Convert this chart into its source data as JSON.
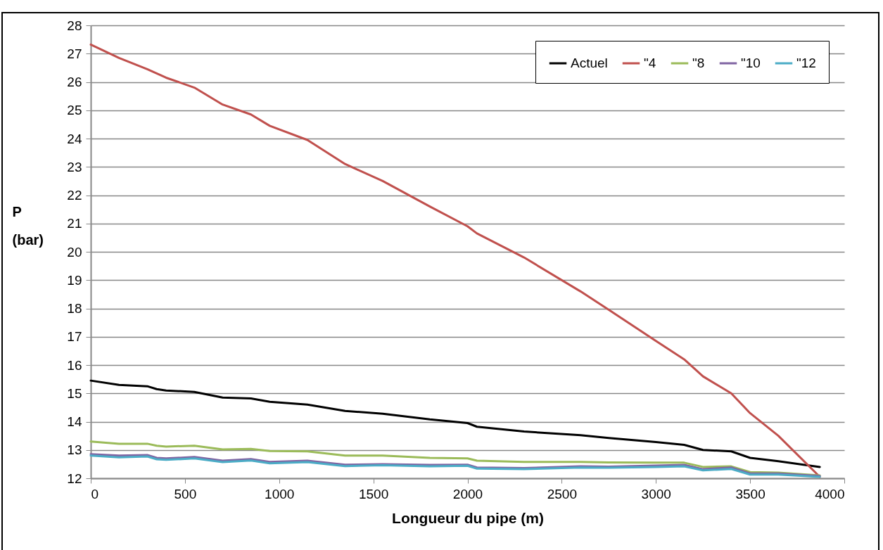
{
  "chart_data": {
    "type": "line",
    "xlabel": "Longueur du pipe (m)",
    "ylabel": "P (bar)",
    "x": [
      0,
      150,
      300,
      350,
      400,
      550,
      700,
      850,
      950,
      1150,
      1350,
      1550,
      1800,
      2000,
      2050,
      2300,
      2600,
      2750,
      3000,
      3150,
      3250,
      3400,
      3500,
      3650,
      3870
    ],
    "series": [
      {
        "name": "Actuel",
        "color": "#000000",
        "values": [
          15.45,
          15.3,
          15.25,
          15.15,
          15.1,
          15.05,
          14.85,
          14.82,
          14.7,
          14.6,
          14.38,
          14.28,
          14.08,
          13.95,
          13.82,
          13.65,
          13.52,
          13.42,
          13.28,
          13.18,
          13.0,
          12.95,
          12.72,
          12.6,
          12.4
        ]
      },
      {
        "name": "\"4",
        "color": "#c0504d",
        "values": [
          27.32,
          26.85,
          26.45,
          26.3,
          26.15,
          25.8,
          25.2,
          24.85,
          24.45,
          23.95,
          23.1,
          22.5,
          21.6,
          20.9,
          20.65,
          19.8,
          18.6,
          17.95,
          16.85,
          16.2,
          15.6,
          15.0,
          14.3,
          13.5,
          12.05
        ]
      },
      {
        "name": "\"8",
        "color": "#9bbb59",
        "values": [
          13.3,
          13.22,
          13.22,
          13.15,
          13.12,
          13.15,
          13.02,
          13.04,
          12.96,
          12.95,
          12.8,
          12.8,
          12.72,
          12.7,
          12.62,
          12.58,
          12.58,
          12.56,
          12.55,
          12.55,
          12.4,
          12.42,
          12.22,
          12.2,
          12.1
        ]
      },
      {
        "name": "\"10",
        "color": "#8064a2",
        "values": [
          12.85,
          12.8,
          12.82,
          12.72,
          12.7,
          12.75,
          12.62,
          12.68,
          12.58,
          12.62,
          12.48,
          12.5,
          12.47,
          12.48,
          12.38,
          12.36,
          12.42,
          12.41,
          12.45,
          12.47,
          12.32,
          12.38,
          12.17,
          12.17,
          12.08
        ]
      },
      {
        "name": "\"12",
        "color": "#4bacc6",
        "values": [
          12.8,
          12.74,
          12.77,
          12.67,
          12.65,
          12.7,
          12.57,
          12.63,
          12.53,
          12.57,
          12.43,
          12.46,
          12.42,
          12.44,
          12.34,
          12.32,
          12.38,
          12.37,
          12.4,
          12.42,
          12.28,
          12.33,
          12.13,
          12.13,
          12.05
        ]
      }
    ],
    "xlim": [
      0,
      4000
    ],
    "xticks": [
      0,
      500,
      1000,
      1500,
      2000,
      2500,
      3000,
      3500,
      4000
    ],
    "ylim": [
      12,
      28
    ],
    "yticks": [
      12,
      13,
      14,
      15,
      16,
      17,
      18,
      19,
      20,
      21,
      22,
      23,
      24,
      25,
      26,
      27,
      28
    ],
    "grid": "y",
    "legend": "top right",
    "line_style": "solid",
    "marker": "none"
  }
}
